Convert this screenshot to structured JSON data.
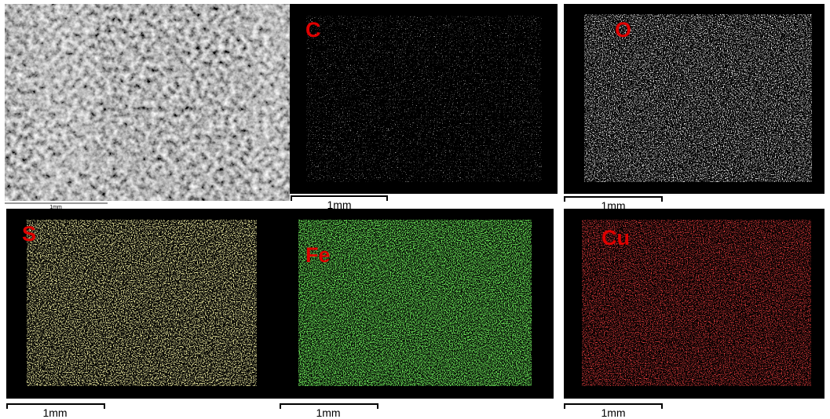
{
  "sem": {
    "scale_bar": "1mm"
  },
  "panels": [
    {
      "label": "C",
      "scale_bar": "1mm"
    },
    {
      "label": "O",
      "scale_bar": "1mm"
    },
    {
      "label": "S",
      "scale_bar": "1mm"
    },
    {
      "label": "Fe",
      "scale_bar": "1mm"
    },
    {
      "label": "Cu",
      "scale_bar": "1mm"
    }
  ]
}
